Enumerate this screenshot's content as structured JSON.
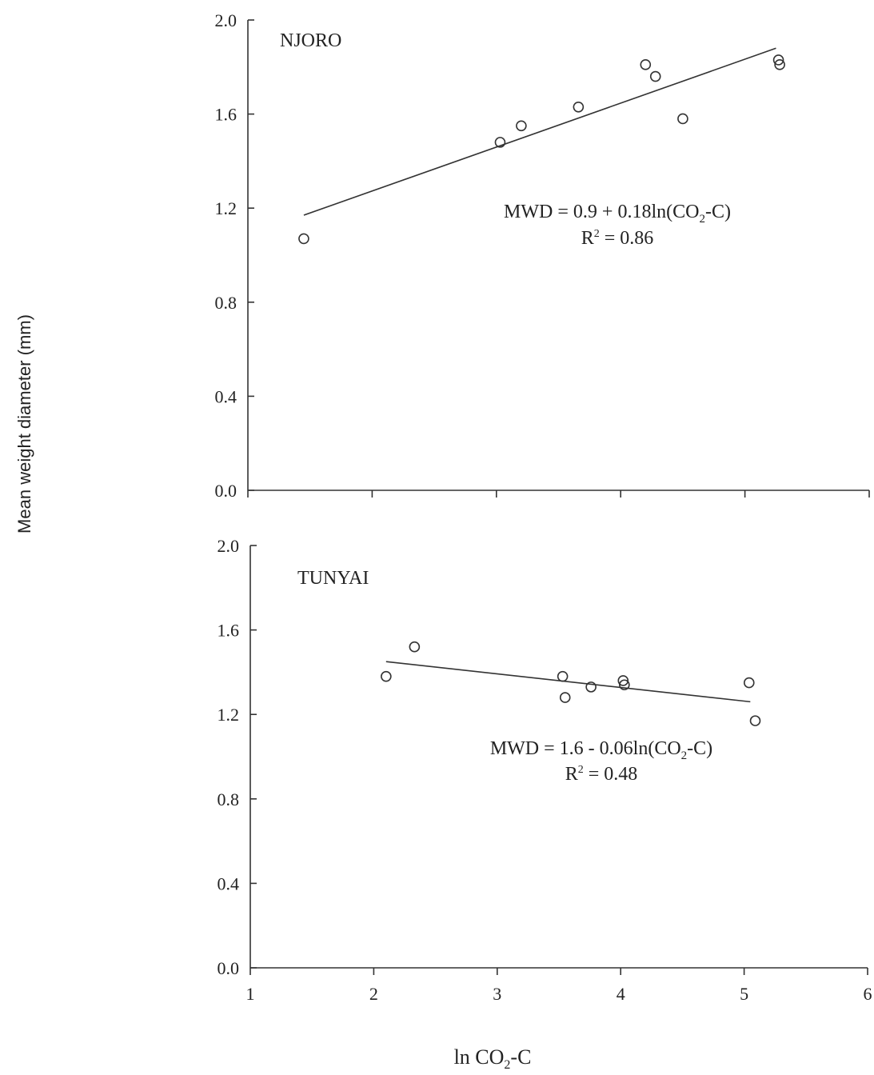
{
  "ylabel": "Mean weight diameter (mm)",
  "xlabel": {
    "pre": "ln CO",
    "sub": "2",
    "post": "-C"
  },
  "chart_data": [
    {
      "type": "scatter",
      "panel": "NJORO",
      "xlim": [
        1,
        6
      ],
      "ylim": [
        0,
        2.0
      ],
      "x_ticks": [
        "1",
        "2",
        "3",
        "4",
        "5",
        "6"
      ],
      "x_tick_labels_shown": false,
      "y_ticks": [
        "0.0",
        "0.4",
        "0.8",
        "1.2",
        "1.6",
        "2.0"
      ],
      "points": [
        {
          "x": 1.45,
          "y": 1.07
        },
        {
          "x": 3.03,
          "y": 1.48
        },
        {
          "x": 3.2,
          "y": 1.55
        },
        {
          "x": 3.66,
          "y": 1.63
        },
        {
          "x": 4.2,
          "y": 1.81
        },
        {
          "x": 4.28,
          "y": 1.76
        },
        {
          "x": 4.5,
          "y": 1.58
        },
        {
          "x": 5.27,
          "y": 1.83
        },
        {
          "x": 5.28,
          "y": 1.81
        }
      ],
      "fit": {
        "x0": 1.45,
        "y0": 1.17,
        "x1": 5.25,
        "y1": 1.88
      },
      "equation": {
        "pre": "MWD = 0.9 + 0.18ln(CO",
        "sub": "2",
        "post": "-C)"
      },
      "r2": {
        "pre": "R",
        "sup": "2",
        "post": " = 0.86"
      }
    },
    {
      "type": "scatter",
      "panel": "TUNYAI",
      "xlim": [
        1,
        6
      ],
      "ylim": [
        0,
        2.0
      ],
      "x_ticks": [
        "1",
        "2",
        "3",
        "4",
        "5",
        "6"
      ],
      "x_tick_labels_shown": true,
      "y_ticks": [
        "0.0",
        "0.4",
        "0.8",
        "1.2",
        "1.6",
        "2.0"
      ],
      "points": [
        {
          "x": 2.1,
          "y": 1.38
        },
        {
          "x": 2.33,
          "y": 1.52
        },
        {
          "x": 3.53,
          "y": 1.38
        },
        {
          "x": 3.55,
          "y": 1.28
        },
        {
          "x": 3.76,
          "y": 1.33
        },
        {
          "x": 4.02,
          "y": 1.36
        },
        {
          "x": 4.03,
          "y": 1.34
        },
        {
          "x": 5.04,
          "y": 1.35
        },
        {
          "x": 5.09,
          "y": 1.17
        }
      ],
      "fit": {
        "x0": 2.1,
        "y0": 1.45,
        "x1": 5.05,
        "y1": 1.26
      },
      "equation": {
        "pre": "MWD = 1.6 - 0.06ln(CO",
        "sub": "2",
        "post": "-C)"
      },
      "r2": {
        "pre": "R",
        "sup": "2",
        "post": " = 0.48"
      }
    }
  ]
}
